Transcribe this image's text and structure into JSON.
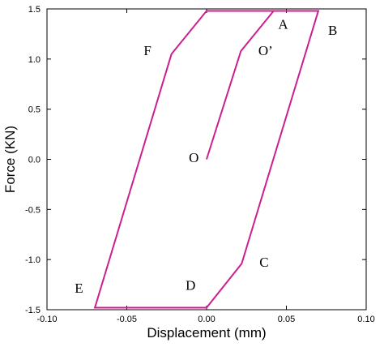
{
  "chart_data": {
    "type": "line",
    "title": "",
    "xlabel": "Displacement (mm)",
    "ylabel": "Force (KN)",
    "xlim": [
      -0.1,
      0.1
    ],
    "ylim": [
      -1.5,
      1.5
    ],
    "grid": false,
    "line_color": "#cc1f8f",
    "x_ticks": [
      -0.1,
      -0.05,
      0.0,
      0.05,
      0.1
    ],
    "x_tick_labels": [
      "-0.10",
      "-0.05",
      "0.00",
      "0.05",
      "0.10"
    ],
    "y_ticks": [
      -1.5,
      -1.0,
      -0.5,
      0.0,
      0.5,
      1.0,
      1.5
    ],
    "y_tick_labels": [
      "-1.5",
      "-1.0",
      "-0.5",
      "0.0",
      "0.5",
      "1.0",
      "1.5"
    ],
    "series": [
      {
        "x": [
          0.0,
          0.0215,
          0.042,
          0.07,
          0.022,
          0.0,
          -0.07,
          -0.022,
          0.0,
          0.07
        ],
        "y": [
          0.0,
          1.08,
          1.48,
          1.48,
          -1.04,
          -1.48,
          -1.48,
          1.05,
          1.48,
          1.48
        ]
      }
    ],
    "annotations": [
      {
        "text": "A",
        "x": 0.048,
        "y": 1.3
      },
      {
        "text": "B",
        "x": 0.079,
        "y": 1.24
      },
      {
        "text": "O’",
        "x": 0.037,
        "y": 1.04
      },
      {
        "text": "F",
        "x": -0.037,
        "y": 1.04
      },
      {
        "text": "O",
        "x": -0.008,
        "y": -0.03
      },
      {
        "text": "C",
        "x": 0.036,
        "y": -1.07
      },
      {
        "text": "D",
        "x": -0.01,
        "y": -1.3
      },
      {
        "text": "E",
        "x": -0.08,
        "y": -1.33
      }
    ]
  }
}
